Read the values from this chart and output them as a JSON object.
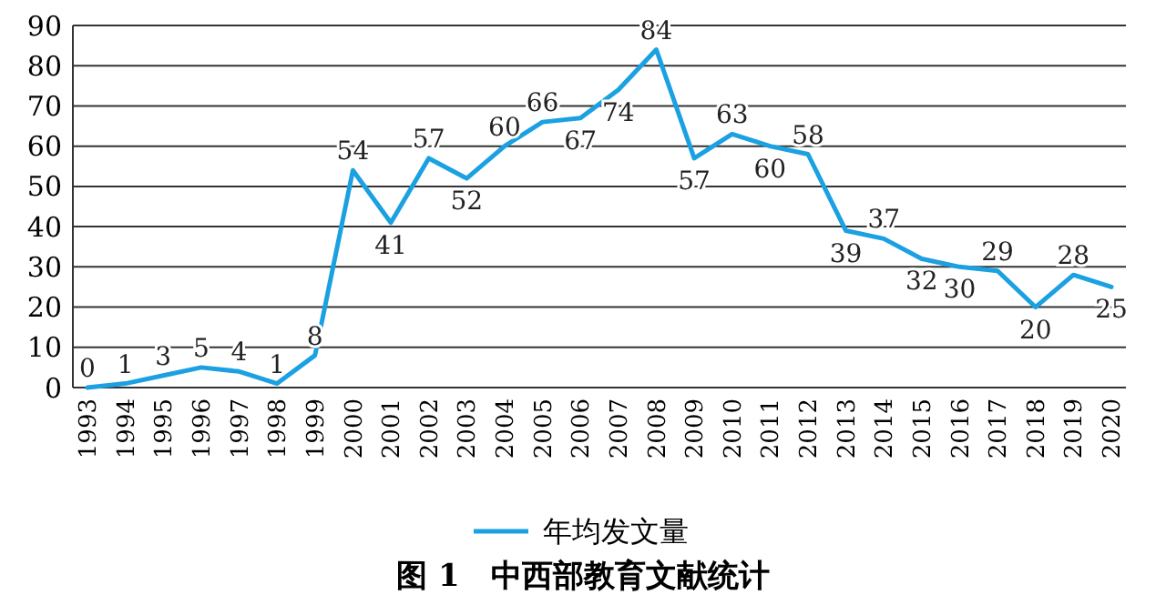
{
  "chart_data": {
    "type": "line",
    "title": "图 1　中西部教育文献统计",
    "categories": [
      "1993",
      "1994",
      "1995",
      "1996",
      "1997",
      "1998",
      "1999",
      "2000",
      "2001",
      "2002",
      "2003",
      "2004",
      "2005",
      "2006",
      "2007",
      "2008",
      "2009",
      "2010",
      "2011",
      "2012",
      "2013",
      "2014",
      "2015",
      "2016",
      "2017",
      "2018",
      "2019",
      "2020"
    ],
    "series": [
      {
        "name": "年均发文量",
        "color": "#1ba1e2",
        "values": [
          0,
          1,
          3,
          5,
          4,
          1,
          8,
          54,
          41,
          57,
          52,
          60,
          66,
          67,
          74,
          84,
          57,
          63,
          60,
          58,
          39,
          37,
          32,
          30,
          29,
          20,
          28,
          25
        ]
      }
    ],
    "ylim": [
      0,
      90
    ],
    "yticks": [
      0,
      10,
      20,
      30,
      40,
      50,
      60,
      70,
      80,
      90
    ],
    "grid": "y",
    "legend": "bottom",
    "data_labels": true,
    "marker": "none",
    "line_style": "solid"
  }
}
